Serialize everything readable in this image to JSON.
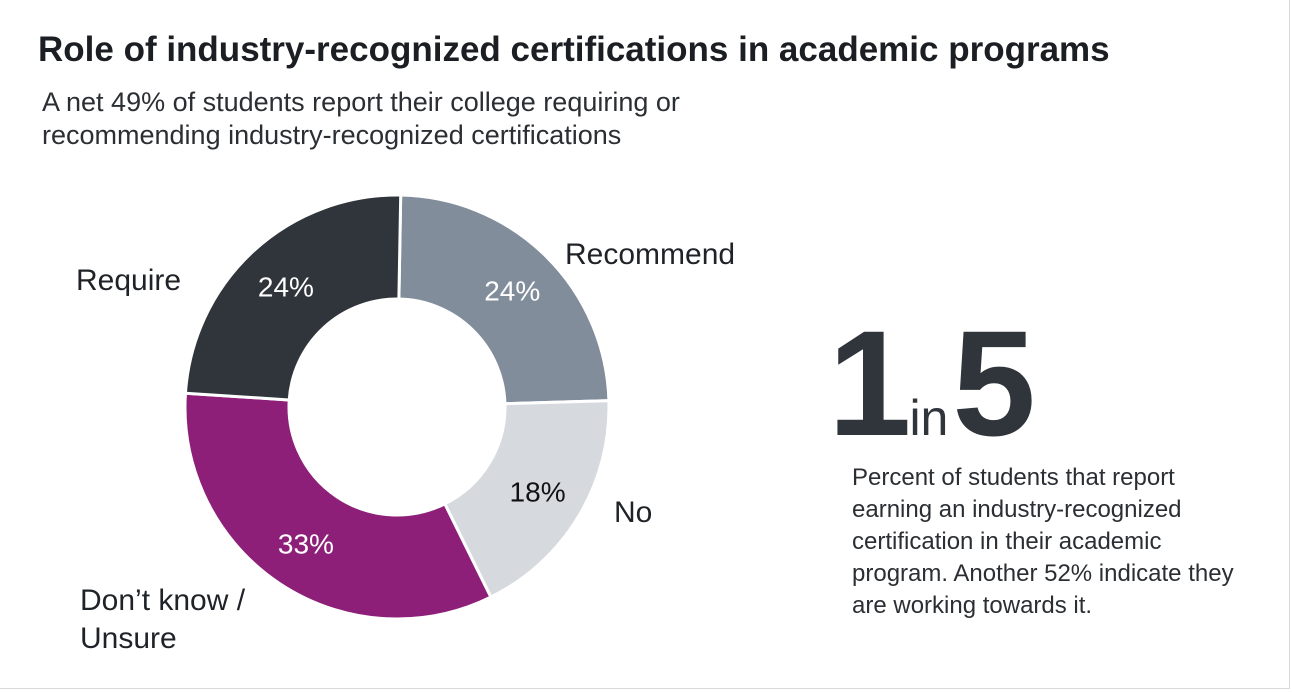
{
  "header": {
    "title": "Role of industry-recognized certifications in academic programs",
    "subtitle": "A net 49% of students report their college requiring or recommending industry-recognized certifications"
  },
  "chart_data": {
    "type": "pie",
    "title": "Role of industry-recognized certifications in academic programs",
    "donut": true,
    "slices": [
      {
        "label": "Require",
        "value": 24,
        "value_label": "24%",
        "color": "#30353b",
        "text_color": "#ffffff"
      },
      {
        "label": "Recommend",
        "value": 24,
        "value_label": "24%",
        "color": "#828d9b",
        "text_color": "#ffffff"
      },
      {
        "label": "No",
        "value": 18,
        "value_label": "18%",
        "color": "#d6dadf",
        "text_color": "#111111"
      },
      {
        "label": "Don’t know / Unsure",
        "value": 33,
        "value_label": "33%",
        "color": "#8e1f78",
        "text_color": "#ffffff"
      }
    ]
  },
  "stat": {
    "number_a": "1",
    "connector": "in",
    "number_b": "5",
    "description": "Percent of students that report earning an industry-recognized certification in their academic program. Another 52% indicate they are working towards it."
  },
  "colors": {
    "stat_text": "#30353b",
    "label_text": "#1f2328"
  }
}
